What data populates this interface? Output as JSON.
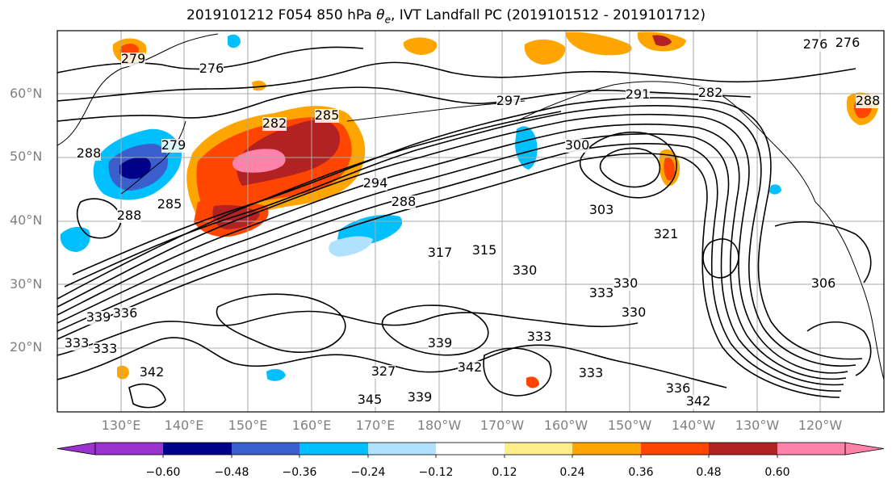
{
  "title": "2019101212 F054 850 hPa θe, IVT Landfall PC (2019101512 - 2019101712)",
  "title_parts": {
    "prefix": "2019101212 F054 850 hPa ",
    "theta": "θ",
    "subscript": "e",
    "suffix": ", IVT Landfall PC (2019101512 - 2019101712)"
  },
  "lat_labels": [
    "60°N",
    "50°N",
    "40°N",
    "30°N",
    "20°N"
  ],
  "lon_labels": [
    "130°E",
    "140°E",
    "150°E",
    "160°E",
    "170°E",
    "180°W",
    "170°W",
    "160°W",
    "150°W",
    "140°W",
    "130°W",
    "120°W"
  ],
  "contour_labels": [
    {
      "text": "279"
    },
    {
      "text": "276"
    },
    {
      "text": "276"
    },
    {
      "text": "276"
    },
    {
      "text": "288"
    },
    {
      "text": "279"
    },
    {
      "text": "282"
    },
    {
      "text": "285"
    },
    {
      "text": "288"
    },
    {
      "text": "294"
    },
    {
      "text": "288"
    },
    {
      "text": "297"
    },
    {
      "text": "288"
    },
    {
      "text": "291"
    },
    {
      "text": "282"
    },
    {
      "text": "285"
    },
    {
      "text": "300"
    },
    {
      "text": "303"
    },
    {
      "text": "321"
    },
    {
      "text": "317"
    },
    {
      "text": "315"
    },
    {
      "text": "330"
    },
    {
      "text": "330"
    },
    {
      "text": "333"
    },
    {
      "text": "330"
    },
    {
      "text": "306"
    },
    {
      "text": "339"
    },
    {
      "text": "336"
    },
    {
      "text": "333"
    },
    {
      "text": "342"
    },
    {
      "text": "339"
    },
    {
      "text": "333"
    },
    {
      "text": "327"
    },
    {
      "text": "342"
    },
    {
      "text": "345"
    },
    {
      "text": "339"
    },
    {
      "text": "333"
    },
    {
      "text": "336"
    },
    {
      "text": "342"
    },
    {
      "text": "333"
    }
  ],
  "colorbar": {
    "colors": [
      "#9a32cd",
      "#00008b",
      "#3a5fcd",
      "#00bfff",
      "#b0e2ff",
      "#ffffff",
      "#ffec8b",
      "#ffa500",
      "#ff4500",
      "#b22222",
      "#ff82ab"
    ],
    "labels": [
      "−0.60",
      "−0.48",
      "−0.36",
      "−0.24",
      "−0.12",
      "0.12",
      "0.24",
      "0.36",
      "0.48",
      "0.60"
    ]
  },
  "palette": {
    "pink": "#ff82ab",
    "darkred": "#b22222",
    "red": "#ff4500",
    "orange": "#ffa500",
    "yellow": "#ffec8b",
    "lightblue": "#b0e2ff",
    "blue": "#00bfff",
    "medblue": "#3a5fcd",
    "navy": "#00008b",
    "contour": "#000000",
    "grid": "#a9a9a9"
  }
}
